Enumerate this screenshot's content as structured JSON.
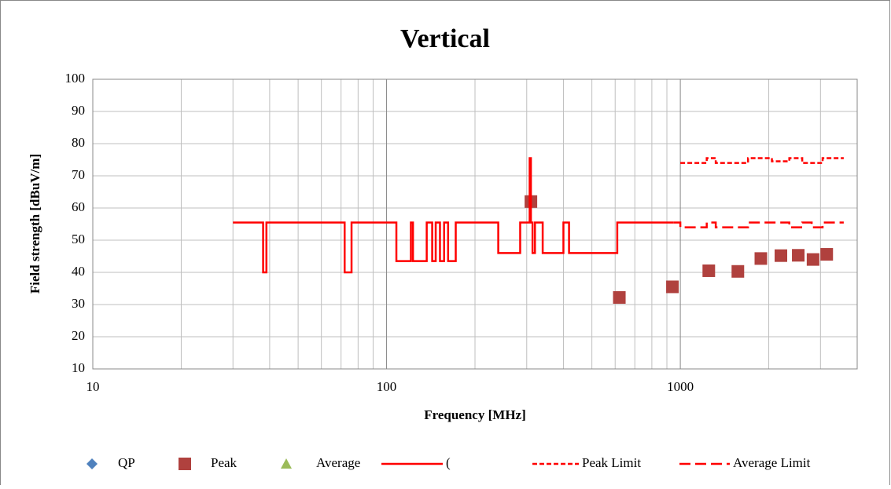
{
  "chart_data": {
    "type": "line",
    "title": "Vertical",
    "xlabel": "Frequency [MHz]",
    "ylabel": "Field strength [dBuV/m]",
    "xscale": "log",
    "xlim": [
      10,
      4000
    ],
    "xticks": [
      10,
      100,
      1000
    ],
    "xminor": [
      20,
      30,
      40,
      50,
      60,
      70,
      80,
      90,
      200,
      300,
      400,
      500,
      600,
      700,
      800,
      900,
      2000,
      3000
    ],
    "ylim": [
      10,
      100
    ],
    "yticks": [
      10,
      20,
      30,
      40,
      50,
      60,
      70,
      80,
      90,
      100
    ],
    "grid": true,
    "legend": "bottom",
    "series": [
      {
        "name": "QP",
        "kind": "diamond",
        "color": "#4f81bd",
        "x": [],
        "values": []
      },
      {
        "name": "Peak",
        "kind": "square",
        "color": "#b0413e",
        "x": [
          310,
          620,
          940,
          1250,
          1570,
          1880,
          2200,
          2520,
          2830,
          3150
        ],
        "values": [
          62,
          32.2,
          35.5,
          40.5,
          40.3,
          44.3,
          45.2,
          45.3,
          44,
          45.6
        ]
      },
      {
        "name": "Average",
        "kind": "triangle",
        "color": "#9bbb59",
        "x": [],
        "values": []
      },
      {
        "name": "(",
        "kind": "solid",
        "color": "#ff0000",
        "x": [
          30,
          38,
          38,
          39,
          39,
          72,
          72,
          76,
          76,
          108,
          108,
          121,
          121,
          123,
          123,
          137,
          137,
          143,
          143,
          147,
          147,
          152,
          152,
          157,
          157,
          162,
          162,
          172,
          172,
          240,
          240,
          285,
          285,
          307,
          307,
          310,
          310,
          314,
          314,
          320,
          320,
          340,
          340,
          400,
          400,
          418,
          418,
          610,
          610,
          613,
          613,
          950
        ],
        "values": [
          55.5,
          55.5,
          40,
          40,
          55.5,
          55.5,
          40,
          40,
          55.5,
          55.5,
          43.5,
          43.5,
          55.5,
          55.5,
          43.5,
          43.5,
          55.5,
          55.5,
          43.5,
          43.5,
          55.5,
          55.5,
          43.5,
          43.5,
          55.5,
          55.5,
          43.5,
          43.5,
          55.5,
          55.5,
          46,
          46,
          55.5,
          55.5,
          75.5,
          75.5,
          55.5,
          55.5,
          46,
          46,
          55.5,
          55.5,
          46,
          46,
          55.5,
          55.5,
          46,
          46,
          55.5,
          55.5,
          55.5,
          55.5
        ]
      },
      {
        "name": "Peak Limit",
        "kind": "dash-short",
        "color": "#ff0000",
        "x": [
          1000,
          1230,
          1230,
          1320,
          1320,
          1500,
          1500,
          1700,
          1700,
          2050,
          2050,
          2350,
          2350,
          2600,
          2600,
          2800,
          2800,
          3050,
          3050,
          3600
        ],
        "values": [
          74,
          74,
          75.5,
          75.5,
          74,
          74,
          74,
          74,
          75.5,
          75.5,
          74.5,
          74.5,
          75.5,
          75.5,
          74,
          74,
          74,
          74,
          75.5,
          75.5
        ]
      },
      {
        "name": "Average Limit",
        "kind": "dash-long",
        "color": "#ff0000",
        "x": [
          950,
          1000,
          1000,
          1230,
          1230,
          1320,
          1320,
          1500,
          1500,
          1700,
          1700,
          2050,
          2050,
          2350,
          2350,
          2600,
          2600,
          2800,
          2800,
          3050,
          3050,
          3600
        ],
        "values": [
          55.5,
          55.5,
          54,
          54,
          55.5,
          55.5,
          54,
          54,
          54,
          54,
          55.5,
          55.5,
          55.5,
          55.5,
          54,
          54,
          55.5,
          55.5,
          54,
          54,
          55.5,
          55.5
        ]
      }
    ]
  }
}
